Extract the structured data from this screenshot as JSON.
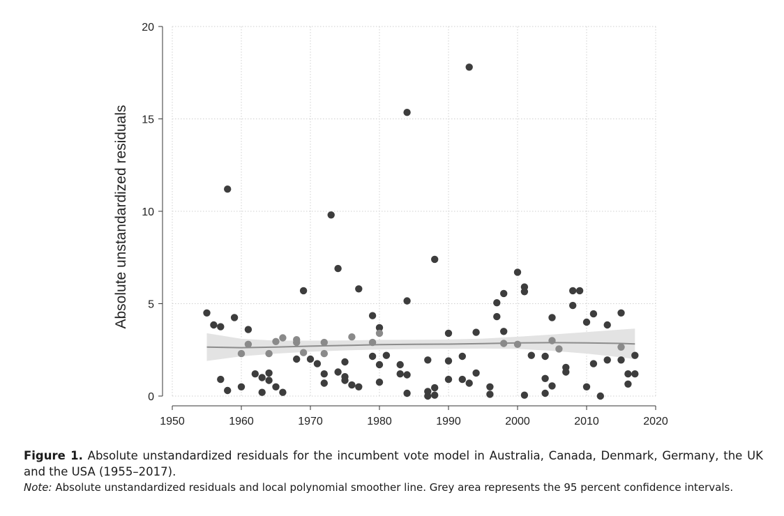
{
  "chart_data": {
    "type": "scatter",
    "title": "",
    "xlabel": "",
    "ylabel": "Absolute unstandardized residuals",
    "xlim": [
      1950,
      2020
    ],
    "ylim": [
      0,
      20
    ],
    "xticks": [
      1950,
      1960,
      1970,
      1980,
      1990,
      2000,
      2010,
      2020
    ],
    "yticks": [
      0,
      5,
      10,
      15,
      20
    ],
    "x_tick_labels": [
      "1950",
      "1960",
      "1970",
      "1980",
      "1990",
      "2000",
      "2010",
      "2020"
    ],
    "y_tick_labels": [
      "0",
      "5",
      "10",
      "15",
      "20"
    ],
    "grid": true,
    "legend": "none",
    "colors": {
      "dark_points": "#3d3d3d",
      "light_points": "#8a8a8a",
      "smoother": "#8c8c8c",
      "confidence_band": "#e3e3e3",
      "grid": "#cfcfcf"
    },
    "series": [
      {
        "points": [
          [
            1955,
            4.5
          ],
          [
            1956,
            3.85
          ],
          [
            1957,
            3.75
          ],
          [
            1957,
            0.9
          ],
          [
            1958,
            11.2
          ],
          [
            1958,
            0.3
          ],
          [
            1959,
            4.25
          ],
          [
            1960,
            0.5
          ],
          [
            1961,
            3.6
          ],
          [
            1962,
            1.2
          ],
          [
            1963,
            1.0
          ],
          [
            1963,
            0.2
          ],
          [
            1964,
            1.25
          ],
          [
            1964,
            0.85
          ],
          [
            1965,
            0.5
          ],
          [
            1966,
            0.2
          ],
          [
            1968,
            2.0
          ],
          [
            1969,
            5.7
          ],
          [
            1970,
            2.0
          ],
          [
            1971,
            1.75
          ],
          [
            1972,
            1.2
          ],
          [
            1972,
            0.7
          ],
          [
            1973,
            9.8
          ],
          [
            1974,
            6.9
          ],
          [
            1974,
            1.3
          ],
          [
            1975,
            1.85
          ],
          [
            1975,
            1.05
          ],
          [
            1975,
            0.85
          ],
          [
            1976,
            0.6
          ],
          [
            1977,
            5.8
          ],
          [
            1977,
            0.5
          ],
          [
            1979,
            4.35
          ],
          [
            1979,
            2.15
          ],
          [
            1980,
            3.7
          ],
          [
            1980,
            1.7
          ],
          [
            1980,
            0.75
          ],
          [
            1981,
            2.2
          ],
          [
            1983,
            1.7
          ],
          [
            1983,
            1.2
          ],
          [
            1984,
            15.35
          ],
          [
            1984,
            5.15
          ],
          [
            1984,
            1.15
          ],
          [
            1984,
            0.15
          ],
          [
            1987,
            1.95
          ],
          [
            1987,
            0.25
          ],
          [
            1987,
            0.0
          ],
          [
            1988,
            7.4
          ],
          [
            1988,
            0.45
          ],
          [
            1988,
            0.05
          ],
          [
            1990,
            3.4
          ],
          [
            1990,
            1.9
          ],
          [
            1990,
            0.9
          ],
          [
            1992,
            2.15
          ],
          [
            1992,
            0.9
          ],
          [
            1993,
            17.8
          ],
          [
            1993,
            0.7
          ],
          [
            1994,
            3.45
          ],
          [
            1994,
            1.25
          ],
          [
            1996,
            0.5
          ],
          [
            1996,
            0.1
          ],
          [
            1997,
            5.05
          ],
          [
            1997,
            4.3
          ],
          [
            1998,
            5.55
          ],
          [
            1998,
            3.5
          ],
          [
            2000,
            6.7
          ],
          [
            2001,
            5.9
          ],
          [
            2001,
            5.65
          ],
          [
            2001,
            0.05
          ],
          [
            2002,
            2.2
          ],
          [
            2004,
            2.15
          ],
          [
            2004,
            0.95
          ],
          [
            2004,
            0.15
          ],
          [
            2005,
            4.25
          ],
          [
            2005,
            0.55
          ],
          [
            2007,
            1.55
          ],
          [
            2007,
            1.3
          ],
          [
            2008,
            5.7
          ],
          [
            2008,
            4.9
          ],
          [
            2009,
            5.7
          ],
          [
            2010,
            4.0
          ],
          [
            2010,
            0.5
          ],
          [
            2011,
            4.45
          ],
          [
            2011,
            1.75
          ],
          [
            2012,
            0.0
          ],
          [
            2013,
            3.85
          ],
          [
            2013,
            1.95
          ],
          [
            2015,
            4.5
          ],
          [
            2015,
            1.95
          ],
          [
            2016,
            1.2
          ],
          [
            2016,
            0.65
          ],
          [
            2017,
            2.2
          ],
          [
            2017,
            1.2
          ]
        ]
      },
      {
        "points": [
          [
            1960,
            2.3
          ],
          [
            1961,
            2.8
          ],
          [
            1964,
            2.3
          ],
          [
            1965,
            2.95
          ],
          [
            1966,
            3.15
          ],
          [
            1968,
            3.05
          ],
          [
            1968,
            2.9
          ],
          [
            1969,
            2.35
          ],
          [
            1972,
            2.9
          ],
          [
            1972,
            2.3
          ],
          [
            1976,
            3.2
          ],
          [
            1979,
            2.9
          ],
          [
            1980,
            3.4
          ],
          [
            1998,
            2.85
          ],
          [
            2000,
            2.8
          ],
          [
            2005,
            3.0
          ],
          [
            2006,
            2.55
          ],
          [
            2015,
            2.65
          ]
        ]
      }
    ],
    "smoother": {
      "x": [
        1955,
        1960,
        1965,
        1970,
        1975,
        1980,
        1985,
        1990,
        1995,
        2000,
        2005,
        2010,
        2015,
        2017
      ],
      "y": [
        2.65,
        2.62,
        2.65,
        2.7,
        2.74,
        2.78,
        2.8,
        2.81,
        2.84,
        2.88,
        2.89,
        2.88,
        2.85,
        2.82
      ],
      "ci_lower": [
        1.9,
        2.15,
        2.3,
        2.4,
        2.47,
        2.52,
        2.55,
        2.56,
        2.57,
        2.55,
        2.45,
        2.3,
        2.1,
        2.0
      ],
      "ci_upper": [
        3.4,
        3.1,
        3.0,
        3.0,
        3.01,
        3.04,
        3.05,
        3.06,
        3.11,
        3.21,
        3.33,
        3.46,
        3.6,
        3.65
      ]
    }
  },
  "caption": {
    "label": "Figure 1.",
    "text": "Absolute unstandardized residuals for the incumbent vote model in Australia, Canada, Denmark, Germany, the UK and the USA (1955–2017).",
    "note_label": "Note:",
    "note_text": "Absolute unstandardized residuals and local polynomial smoother line. Grey area represents the 95 percent confidence intervals."
  }
}
